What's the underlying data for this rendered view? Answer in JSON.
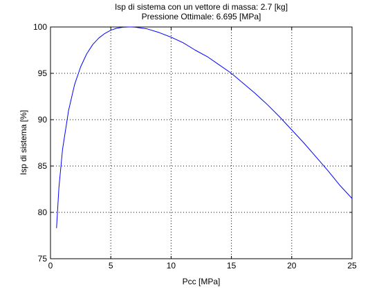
{
  "chart_data": {
    "type": "line",
    "title_lines": [
      "Isp di sistema con un vettore di massa: 2.7 [kg]",
      "Pressione Ottimale: 6.695 [MPa]"
    ],
    "xlabel": "Pcc [MPa]",
    "ylabel": "Isp di sistema [%]",
    "xlim": [
      0,
      25
    ],
    "ylim": [
      75,
      100
    ],
    "xticks": [
      0,
      5,
      10,
      15,
      20,
      25
    ],
    "yticks": [
      75,
      80,
      85,
      90,
      95,
      100
    ],
    "grid": true,
    "series_color": "#0000ff",
    "series": [
      {
        "x": [
          0.5,
          0.7,
          1.0,
          1.5,
          2.0,
          2.5,
          3.0,
          3.5,
          4.0,
          4.5,
          5.0,
          5.5,
          6.0,
          6.5,
          6.695,
          7.0,
          8.0,
          9.0,
          10.0,
          11.0,
          12.0,
          13.0,
          14.0,
          15.0,
          16.0,
          17.0,
          18.0,
          19.0,
          20.0,
          21.0,
          22.0,
          23.0,
          24.0,
          25.0
        ],
        "y": [
          78.3,
          82.7,
          86.8,
          91.0,
          93.8,
          95.7,
          97.1,
          98.1,
          98.8,
          99.3,
          99.65,
          99.87,
          99.97,
          100.0,
          100.0,
          99.98,
          99.8,
          99.4,
          98.9,
          98.3,
          97.5,
          96.8,
          95.9,
          95.0,
          93.9,
          92.8,
          91.6,
          90.3,
          88.9,
          87.5,
          86.0,
          84.5,
          82.9,
          81.5
        ]
      }
    ]
  }
}
